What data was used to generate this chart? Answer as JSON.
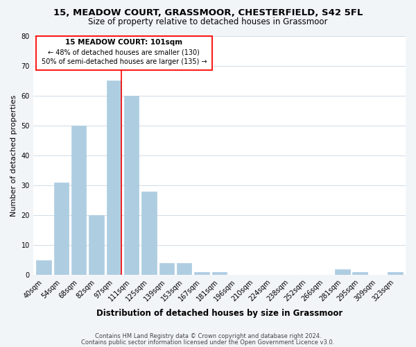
{
  "title1": "15, MEADOW COURT, GRASSMOOR, CHESTERFIELD, S42 5FL",
  "title2": "Size of property relative to detached houses in Grassmoor",
  "xlabel": "Distribution of detached houses by size in Grassmoor",
  "ylabel": "Number of detached properties",
  "footer1": "Contains HM Land Registry data © Crown copyright and database right 2024.",
  "footer2": "Contains public sector information licensed under the Open Government Licence v3.0.",
  "bin_labels": [
    "40sqm",
    "54sqm",
    "68sqm",
    "82sqm",
    "97sqm",
    "111sqm",
    "125sqm",
    "139sqm",
    "153sqm",
    "167sqm",
    "181sqm",
    "196sqm",
    "210sqm",
    "224sqm",
    "238sqm",
    "252sqm",
    "266sqm",
    "281sqm",
    "295sqm",
    "309sqm",
    "323sqm"
  ],
  "bar_values": [
    5,
    31,
    50,
    20,
    65,
    60,
    28,
    4,
    4,
    1,
    1,
    0,
    0,
    0,
    0,
    0,
    0,
    2,
    1,
    0,
    1
  ],
  "bar_color": "#aecde1",
  "bar_edgecolor": "#aecde1",
  "red_line_bar_index": 4,
  "annotation_title": "15 MEADOW COURT: 101sqm",
  "annotation_line1": "← 48% of detached houses are smaller (130)",
  "annotation_line2": "50% of semi-detached houses are larger (135) →",
  "ylim": [
    0,
    80
  ],
  "yticks": [
    0,
    10,
    20,
    30,
    40,
    50,
    60,
    70,
    80
  ],
  "bg_color": "#f2f5f8",
  "plot_bg_color": "#ffffff",
  "grid_color": "#d0dce8",
  "title1_fontsize": 9.5,
  "title2_fontsize": 8.5,
  "ylabel_fontsize": 8,
  "xlabel_fontsize": 8.5,
  "tick_fontsize": 7,
  "footer_fontsize": 6,
  "ann_title_fontsize": 7.5,
  "ann_text_fontsize": 7
}
